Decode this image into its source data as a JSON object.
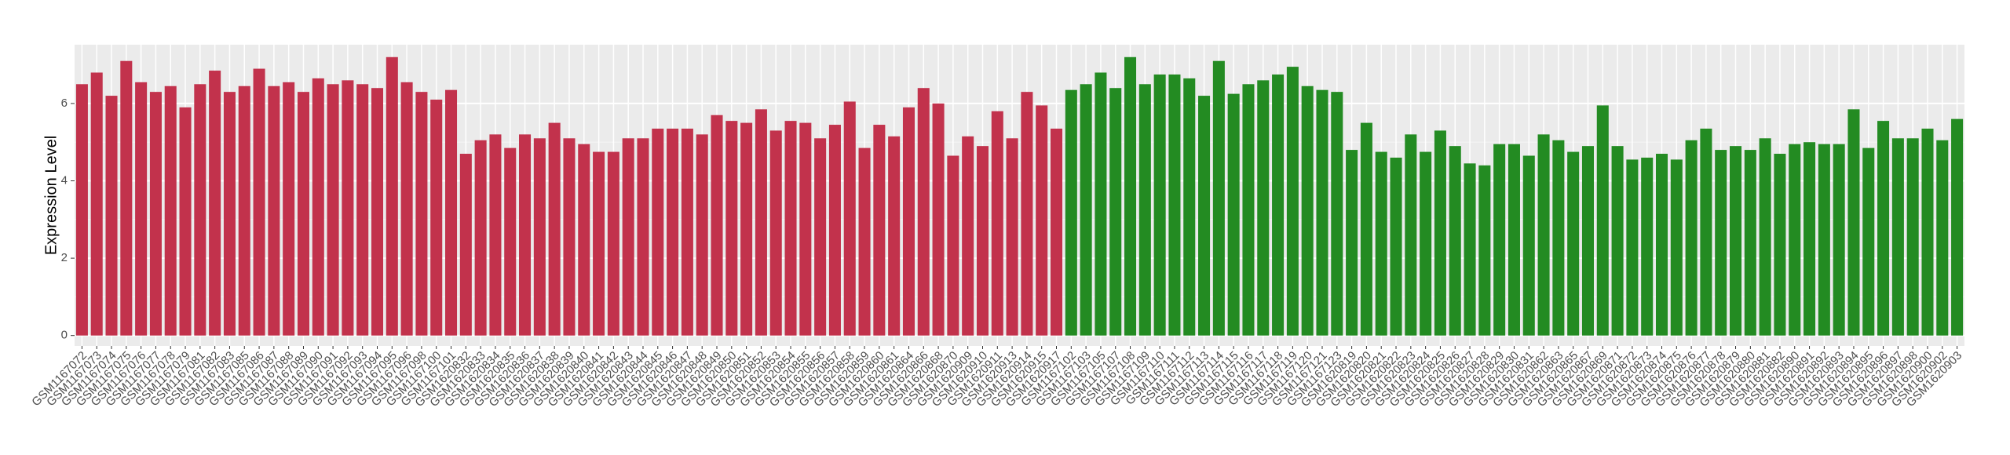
{
  "chart_data": {
    "type": "bar",
    "y_label": "Expression Level",
    "categories": [
      "GSM1167072",
      "GSM1167073",
      "GSM1167074",
      "GSM1167075",
      "GSM1167076",
      "GSM1167077",
      "GSM1167078",
      "GSM1167079",
      "GSM1167081",
      "GSM1167082",
      "GSM1167083",
      "GSM1167085",
      "GSM1167086",
      "GSM1167087",
      "GSM1167088",
      "GSM1167089",
      "GSM1167090",
      "GSM1167091",
      "GSM1167092",
      "GSM1167093",
      "GSM1167094",
      "GSM1167095",
      "GSM1167096",
      "GSM1167098",
      "GSM1167100",
      "GSM1167101",
      "GSM1620832",
      "GSM1620833",
      "GSM1620834",
      "GSM1620835",
      "GSM1620836",
      "GSM1620837",
      "GSM1620838",
      "GSM1620839",
      "GSM1620840",
      "GSM1620841",
      "GSM1620842",
      "GSM1620843",
      "GSM1620844",
      "GSM1620845",
      "GSM1620846",
      "GSM1620847",
      "GSM1620848",
      "GSM1620849",
      "GSM1620850",
      "GSM1620851",
      "GSM1620852",
      "GSM1620853",
      "GSM1620854",
      "GSM1620855",
      "GSM1620856",
      "GSM1620857",
      "GSM1620858",
      "GSM1620859",
      "GSM1620860",
      "GSM1620861",
      "GSM1620864",
      "GSM1620866",
      "GSM1620868",
      "GSM1620870",
      "GSM1620909",
      "GSM1620910",
      "GSM1620911",
      "GSM1620913",
      "GSM1620914",
      "GSM1620915",
      "GSM1620917",
      "GSM1167102",
      "GSM1167103",
      "GSM1167105",
      "GSM1167107",
      "GSM1167108",
      "GSM1167109",
      "GSM1167110",
      "GSM1167111",
      "GSM1167112",
      "GSM1167113",
      "GSM1167114",
      "GSM1167115",
      "GSM1167116",
      "GSM1167117",
      "GSM1167118",
      "GSM1167119",
      "GSM1167120",
      "GSM1167121",
      "GSM1167123",
      "GSM1620819",
      "GSM1620820",
      "GSM1620821",
      "GSM1620822",
      "GSM1620823",
      "GSM1620824",
      "GSM1620825",
      "GSM1620826",
      "GSM1620827",
      "GSM1620828",
      "GSM1620829",
      "GSM1620830",
      "GSM1620831",
      "GSM1620862",
      "GSM1620863",
      "GSM1620865",
      "GSM1620867",
      "GSM1620869",
      "GSM1620871",
      "GSM1620872",
      "GSM1620873",
      "GSM1620874",
      "GSM1620875",
      "GSM1620876",
      "GSM1620877",
      "GSM1620878",
      "GSM1620879",
      "GSM1620880",
      "GSM1620881",
      "GSM1620882",
      "GSM1620890",
      "GSM1620891",
      "GSM1620892",
      "GSM1620893",
      "GSM1620894",
      "GSM1620895",
      "GSM1620896",
      "GSM1620897",
      "GSM1620898",
      "GSM1620900",
      "GSM1620902",
      "GSM1620903"
    ],
    "values": [
      6.5,
      6.8,
      6.2,
      7.1,
      6.55,
      6.3,
      6.45,
      5.9,
      6.5,
      6.85,
      6.3,
      6.45,
      6.9,
      6.45,
      6.55,
      6.3,
      6.65,
      6.5,
      6.6,
      6.5,
      6.4,
      7.2,
      6.55,
      6.3,
      6.1,
      6.35,
      4.7,
      5.05,
      5.2,
      4.85,
      5.2,
      5.1,
      5.5,
      5.1,
      4.95,
      4.75,
      4.75,
      5.1,
      5.1,
      5.35,
      5.35,
      5.35,
      5.2,
      5.7,
      5.55,
      5.5,
      5.85,
      5.3,
      5.55,
      5.5,
      5.1,
      5.45,
      6.05,
      4.85,
      5.45,
      5.15,
      5.9,
      6.4,
      6.0,
      4.65,
      5.15,
      4.9,
      5.8,
      5.1,
      6.3,
      5.95,
      5.35,
      6.35,
      6.5,
      6.8,
      6.4,
      7.2,
      6.5,
      6.75,
      6.75,
      6.65,
      6.2,
      7.1,
      6.25,
      6.5,
      6.6,
      6.75,
      6.95,
      6.45,
      6.35,
      6.3,
      4.8,
      5.5,
      4.75,
      4.6,
      5.2,
      4.75,
      5.3,
      4.9,
      4.45,
      4.4,
      4.95,
      4.95,
      4.65,
      5.2,
      5.05,
      4.75,
      4.9,
      5.95,
      4.9,
      4.55,
      4.6,
      4.7,
      4.55,
      5.05,
      5.35,
      4.8,
      4.9,
      4.8,
      5.1,
      4.7,
      4.95,
      5.0,
      4.95,
      4.95,
      5.85,
      4.85,
      5.55,
      5.1,
      5.1,
      5.35,
      5.05,
      5.6
    ],
    "group_colors": [
      "#c2324c",
      "#238b22"
    ],
    "group_sizes": [
      67,
      61
    ],
    "ylim": [
      -0.27,
      7.52
    ],
    "yticks": [
      0,
      2,
      4,
      6
    ],
    "grid": true
  }
}
